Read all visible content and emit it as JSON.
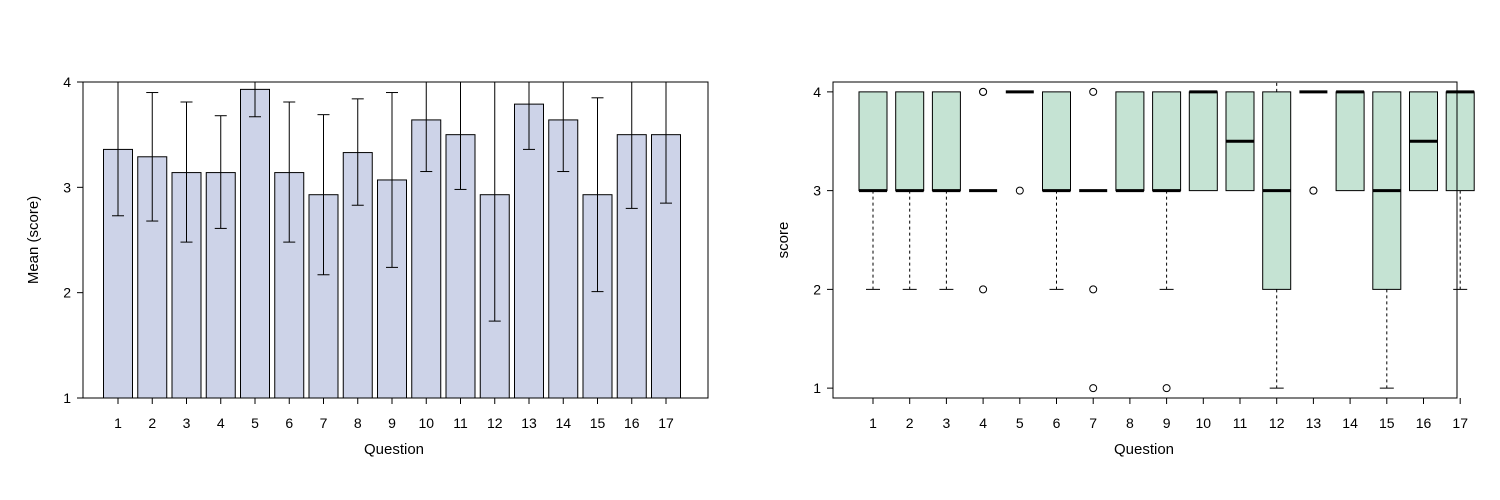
{
  "chart_data": [
    {
      "type": "bar",
      "title": "",
      "xlabel": "Question",
      "ylabel": "Mean (score)",
      "categories": [
        "1",
        "2",
        "3",
        "4",
        "5",
        "6",
        "7",
        "8",
        "9",
        "10",
        "11",
        "12",
        "13",
        "14",
        "15",
        "16",
        "17"
      ],
      "values": [
        3.36,
        3.29,
        3.14,
        3.14,
        3.93,
        3.14,
        2.93,
        3.33,
        3.07,
        3.64,
        3.5,
        2.93,
        3.79,
        3.64,
        2.93,
        3.5,
        3.5
      ],
      "error_lower": [
        2.73,
        2.68,
        2.48,
        2.61,
        3.67,
        2.48,
        2.17,
        2.83,
        2.24,
        3.15,
        2.98,
        1.73,
        3.36,
        3.15,
        2.01,
        2.8,
        2.85
      ],
      "error_upper": [
        4.0,
        3.9,
        3.81,
        3.68,
        4.0,
        3.81,
        3.69,
        3.84,
        3.9,
        4.0,
        4.0,
        4.0,
        4.0,
        4.0,
        3.85,
        4.0,
        4.0
      ],
      "ylim": [
        1,
        4
      ],
      "yticks": [
        1,
        2,
        3,
        4
      ],
      "bar_color": "#cdd3e8",
      "grid": false
    },
    {
      "type": "box",
      "title": "",
      "xlabel": "Question",
      "ylabel": "score",
      "categories": [
        "1",
        "2",
        "3",
        "4",
        "5",
        "6",
        "7",
        "8",
        "9",
        "10",
        "11",
        "12",
        "13",
        "14",
        "15",
        "16",
        "17"
      ],
      "boxes": [
        {
          "q1": 3,
          "median": 3,
          "q3": 4,
          "whisker_low": 2,
          "whisker_high": 4,
          "outliers": []
        },
        {
          "q1": 3,
          "median": 3,
          "q3": 4,
          "whisker_low": 2,
          "whisker_high": 4,
          "outliers": []
        },
        {
          "q1": 3,
          "median": 3,
          "q3": 4,
          "whisker_low": 2,
          "whisker_high": 4,
          "outliers": []
        },
        {
          "q1": 3,
          "median": 3,
          "q3": 3,
          "whisker_low": 3,
          "whisker_high": 3,
          "outliers": [
            4,
            4,
            2
          ]
        },
        {
          "q1": 4,
          "median": 4,
          "q3": 4,
          "whisker_low": 4,
          "whisker_high": 4,
          "outliers": [
            3
          ]
        },
        {
          "q1": 3,
          "median": 3,
          "q3": 4,
          "whisker_low": 2,
          "whisker_high": 4,
          "outliers": []
        },
        {
          "q1": 3,
          "median": 3,
          "q3": 3,
          "whisker_low": 3,
          "whisker_high": 3,
          "outliers": [
            4,
            2,
            1
          ]
        },
        {
          "q1": 3,
          "median": 3,
          "q3": 4,
          "whisker_low": 3,
          "whisker_high": 4,
          "outliers": []
        },
        {
          "q1": 3,
          "median": 3,
          "q3": 4,
          "whisker_low": 2,
          "whisker_high": 4,
          "outliers": [
            1
          ]
        },
        {
          "q1": 3,
          "median": 4,
          "q3": 4,
          "whisker_low": 3,
          "whisker_high": 4,
          "outliers": []
        },
        {
          "q1": 3,
          "median": 3.5,
          "q3": 4,
          "whisker_low": 3,
          "whisker_high": 4,
          "outliers": []
        },
        {
          "q1": 2,
          "median": 3,
          "q3": 4,
          "whisker_low": 1,
          "whisker_high": 4.1,
          "outliers": []
        },
        {
          "q1": 4,
          "median": 4,
          "q3": 4,
          "whisker_low": 4,
          "whisker_high": 4,
          "outliers": [
            3,
            3
          ]
        },
        {
          "q1": 3,
          "median": 4,
          "q3": 4,
          "whisker_low": 3,
          "whisker_high": 4,
          "outliers": []
        },
        {
          "q1": 2,
          "median": 3,
          "q3": 4,
          "whisker_low": 1,
          "whisker_high": 4,
          "outliers": []
        },
        {
          "q1": 3,
          "median": 3.5,
          "q3": 4,
          "whisker_low": 3,
          "whisker_high": 4,
          "outliers": []
        },
        {
          "q1": 3,
          "median": 4,
          "q3": 4,
          "whisker_low": 2,
          "whisker_high": 4,
          "outliers": []
        }
      ],
      "ylim": [
        0.9,
        4.1
      ],
      "yticks": [
        1,
        2,
        3,
        4
      ],
      "box_color": "#c5e3d3",
      "grid": false
    }
  ]
}
